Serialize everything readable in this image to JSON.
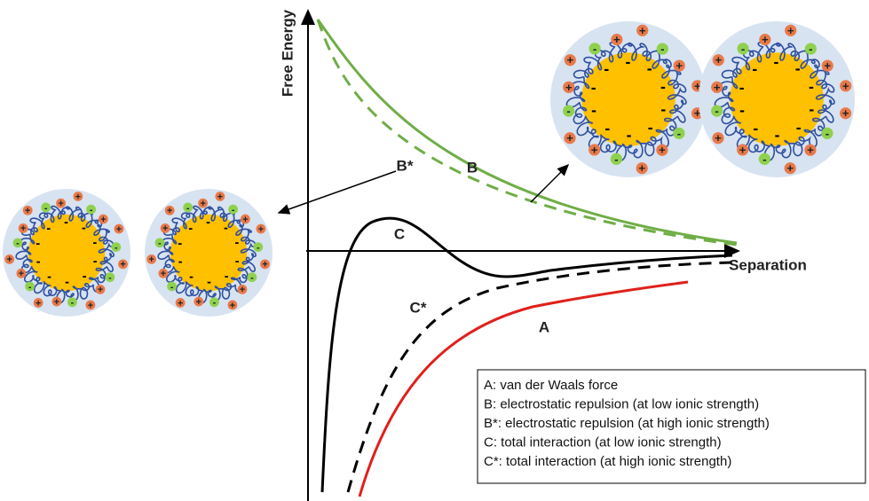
{
  "axes": {
    "y_label": "Free Energy",
    "x_label": "Separation"
  },
  "curve_labels": {
    "B_star": "B*",
    "B": "B",
    "C": "C",
    "C_star": "C*",
    "A": "A"
  },
  "legend": [
    "A: van der Waals force",
    "B: electrostatic repulsion (at low ionic strength)",
    "B*: electrostatic repulsion (at high ionic strength)",
    "C: total interaction (at low ionic strength)",
    "C*: total interaction (at high ionic strength)"
  ],
  "ions": {
    "positive": "+",
    "negative": "-"
  }
}
